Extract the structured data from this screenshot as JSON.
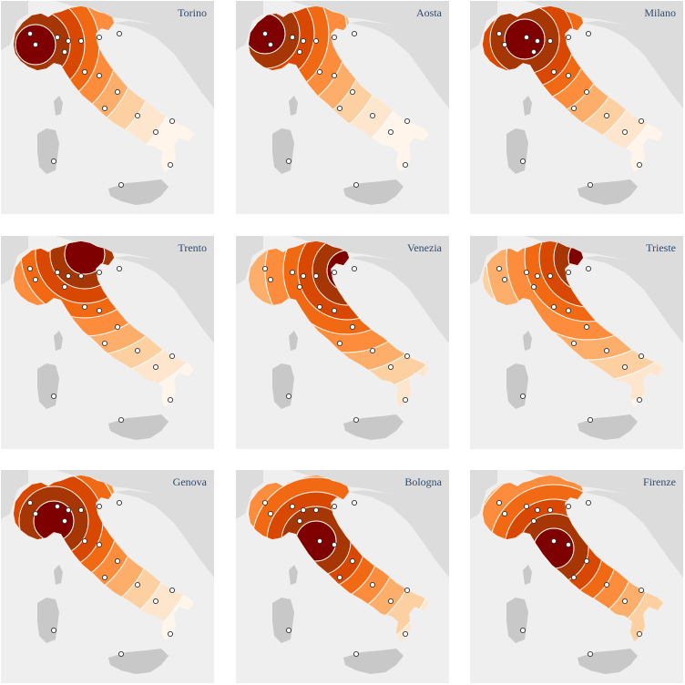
{
  "map": {
    "panels": [
      {
        "title": "Torino",
        "focus": 0
      },
      {
        "title": "Aosta",
        "focus": 1
      },
      {
        "title": "Milano",
        "focus": 2
      },
      {
        "title": "Trento",
        "focus": 3
      },
      {
        "title": "Venezia",
        "focus": 4
      },
      {
        "title": "Trieste",
        "focus": 5
      },
      {
        "title": "Genova",
        "focus": 6
      },
      {
        "title": "Bologna",
        "focus": 7
      },
      {
        "title": "Firenze",
        "focus": 8
      }
    ],
    "palette": [
      "#fff5eb",
      "#fee6ce",
      "#fdd0a2",
      "#fdae6b",
      "#fd8d3c",
      "#f16913",
      "#d94801",
      "#a63603",
      "#7f0000"
    ],
    "colors": {
      "background": "#efefef",
      "neighbors": "#dcdcdc",
      "islands": "#c8c8c8",
      "ring_line": "#ffffff",
      "title": "#2f4a6b"
    }
  }
}
